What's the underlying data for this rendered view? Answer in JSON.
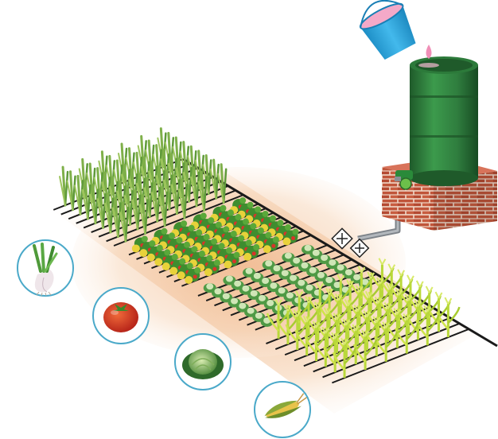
{
  "scene": {
    "components": [
      "bucket",
      "water-drop",
      "water-barrel",
      "brick-stand",
      "tap-valve",
      "supply-pipe",
      "filter-connectors",
      "main-drip-line",
      "lateral-drip-lines"
    ],
    "crops": [
      {
        "name": "spring-onion",
        "icon": "onion-icon",
        "rows": 9,
        "row_color": "#7fb04a"
      },
      {
        "name": "tomato",
        "icon": "tomato-icon",
        "rows": 8,
        "row_color": "#3f8d2f"
      },
      {
        "name": "cabbage",
        "icon": "cabbage-icon",
        "rows": 8,
        "row_color": "#4f9a45"
      },
      {
        "name": "maize",
        "icon": "maize-icon",
        "rows": 8,
        "row_color": "#b9d83a"
      }
    ]
  },
  "colors": {
    "barrel": "#2f7d3e",
    "barrel_dark": "#1f5a2a",
    "brick": "#c0553a",
    "mortar": "#f0d8c8",
    "bucket": "#2ba9e0",
    "drop": "#f08fb7",
    "pipe": "#8a8f95",
    "drip_line": "#1a1a1a",
    "soil": "#f3c9a4",
    "circle_border": "#4aa9c9"
  }
}
